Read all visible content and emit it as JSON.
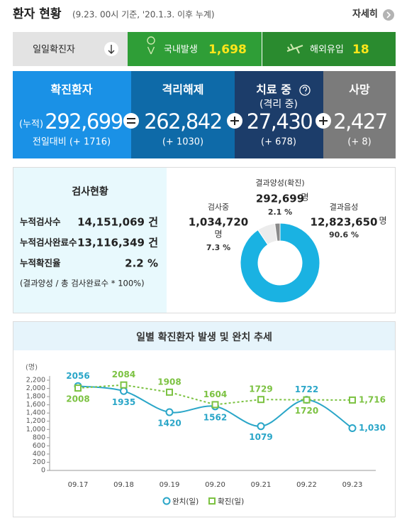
{
  "header": {
    "title": "환자 현황",
    "subtitle": "(9.23. 00시 기준, '20.1.3. 이후 누계)",
    "more": "자세히"
  },
  "daily": {
    "label": "일일확진자",
    "domestic_label": "국내발생",
    "domestic": "1,698",
    "overseas_label": "해외유입",
    "overseas": "18"
  },
  "boxes": [
    {
      "title": "확진환자",
      "prefix": "(누적)",
      "value": "292,699",
      "sub": "전일대비 (+ 1716)"
    },
    {
      "title": "격리해제",
      "value": "262,842",
      "sub": "(+ 1030)"
    },
    {
      "title": "치료 중",
      "title_sub": "(격리 중)",
      "value": "27,430",
      "sub": "(+ 678)"
    },
    {
      "title": "사망",
      "value": "2,427",
      "sub": "(+ 8)"
    }
  ],
  "tests": {
    "title": "검사현황",
    "rows": [
      [
        "누적검사수",
        "14,151,069 건"
      ],
      [
        "누적검사완료수",
        "13,116,349 건"
      ],
      [
        "누적확진율",
        "2.2 %"
      ]
    ],
    "note": "(결과양성 / 총 검사완료수 * 100%)"
  },
  "chart_data": [
    {
      "type": "pie",
      "categories": [
        "결과음성",
        "검사중",
        "결과양성(확진)"
      ],
      "values": [
        90.6,
        7.3,
        2.1
      ],
      "value_labels": [
        "90.6 %",
        "7.3 %",
        "2.1 %"
      ],
      "counts": [
        "12,823,650",
        "1,034,720",
        "292,699"
      ],
      "unit": "명",
      "colors": [
        "#1ab2e2",
        "#ececec",
        "#8a8a8a"
      ]
    },
    {
      "type": "line",
      "title": "일별 확진환자 발생 및 완치 추세",
      "y_label": "(명)",
      "categories": [
        "09.17",
        "09.18",
        "09.19",
        "09.20",
        "09.21",
        "09.22",
        "09.23"
      ],
      "series": [
        {
          "name": "완치(일)",
          "color": "#2aa6c8",
          "values": [
            2056,
            1935,
            1420,
            1562,
            1079,
            1722,
            1030
          ],
          "value_labels": [
            "2056",
            "1935",
            "1420",
            "1562",
            "1079",
            "1722",
            "1,030"
          ]
        },
        {
          "name": "확진(일)",
          "color": "#7cc242",
          "values": [
            2008,
            2084,
            1908,
            1604,
            1729,
            1720,
            1716
          ],
          "value_labels": [
            "2008",
            "2084",
            "1908",
            "1604",
            "1729",
            "1720",
            "1,716"
          ]
        }
      ],
      "ylim": [
        0,
        2200
      ],
      "yticks": [
        0,
        200,
        400,
        600,
        800,
        {
          "value": 1000,
          "label": "1,000"
        },
        {
          "value": 1200,
          "label": "1,200"
        },
        {
          "value": 1400,
          "label": "1,400"
        },
        {
          "value": 1600,
          "label": "1,600"
        },
        {
          "value": 1800,
          "label": "1,800"
        },
        {
          "value": 2000,
          "label": "2,000"
        },
        {
          "value": 2200,
          "label": "2,200"
        }
      ]
    }
  ]
}
